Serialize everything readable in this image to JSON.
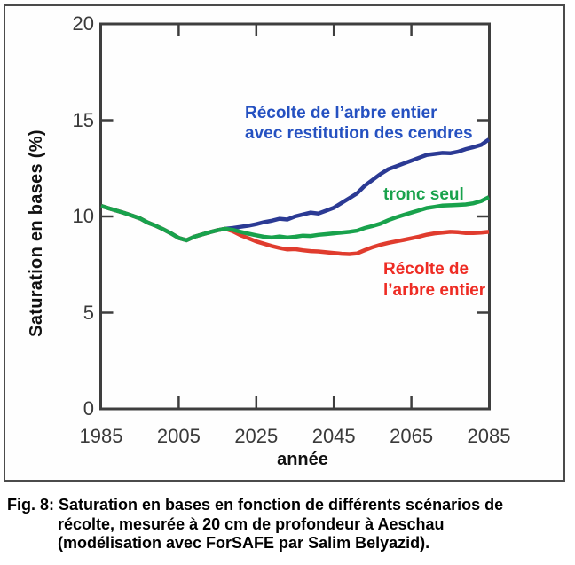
{
  "figure": {
    "caption": {
      "lines": [
        "Fig. 8: Saturation en bases en fonction de différents scénarios de",
        "récolte, mesurée à 20 cm de profondeur à Aeschau",
        "(modélisation avec ForSAFE par Salim Belyazid)."
      ]
    }
  },
  "chart_data": {
    "type": "line",
    "title": "",
    "xlabel": "année",
    "ylabel": "Saturation en bases (%)",
    "xlim": [
      1985,
      2085
    ],
    "ylim": [
      0,
      20
    ],
    "grid": false,
    "legend_position": "inline-annotations",
    "axis_color": "#3e3e3e",
    "x_tick_labels": [
      "1985",
      "2005",
      "2025",
      "2045",
      "2065",
      "2085"
    ],
    "x_tick_values": [
      1985,
      2005,
      2025,
      2045,
      2065,
      2085
    ],
    "x_tick_marks": [
      2005,
      2025,
      2045,
      2065
    ],
    "y_tick_labels": [
      "20",
      "15",
      "10",
      "5",
      "0"
    ],
    "y_tick_values": [
      20,
      15,
      10,
      5,
      0
    ],
    "y_tick_marks": [
      5,
      10,
      15
    ],
    "x": [
      1985,
      1987,
      1989,
      1991,
      1993,
      1995,
      1997,
      1999,
      2001,
      2003,
      2005,
      2007,
      2009,
      2011,
      2013,
      2015,
      2017,
      2019,
      2021,
      2023,
      2025,
      2027,
      2029,
      2031,
      2033,
      2035,
      2037,
      2039,
      2041,
      2043,
      2045,
      2047,
      2049,
      2051,
      2053,
      2055,
      2057,
      2059,
      2061,
      2063,
      2065,
      2067,
      2069,
      2071,
      2073,
      2075,
      2077,
      2079,
      2081,
      2083,
      2085
    ],
    "series": [
      {
        "name": "Récolte de l’arbre entier avec restitution des cendres",
        "annotation_lines": [
          "Récolte de l’arbre entier",
          "avec restitution des cendres"
        ],
        "line_color": "#2b3a94",
        "label_color": "#2551c1",
        "values": [
          10.55,
          10.42,
          10.3,
          10.18,
          10.04,
          9.9,
          9.68,
          9.52,
          9.33,
          9.12,
          8.88,
          8.76,
          8.94,
          9.06,
          9.18,
          9.28,
          9.36,
          9.4,
          9.46,
          9.52,
          9.6,
          9.7,
          9.78,
          9.88,
          9.84,
          10.0,
          10.1,
          10.2,
          10.15,
          10.3,
          10.45,
          10.7,
          10.95,
          11.2,
          11.6,
          11.9,
          12.2,
          12.45,
          12.6,
          12.75,
          12.9,
          13.05,
          13.2,
          13.25,
          13.3,
          13.28,
          13.36,
          13.5,
          13.6,
          13.72,
          14.0
        ]
      },
      {
        "name": "tronc seul",
        "annotation_lines": [
          "tronc seul"
        ],
        "line_color": "#18a24c",
        "label_color": "#18a24c",
        "values": [
          10.55,
          10.42,
          10.3,
          10.18,
          10.04,
          9.9,
          9.68,
          9.52,
          9.33,
          9.12,
          8.88,
          8.76,
          8.94,
          9.06,
          9.18,
          9.28,
          9.36,
          9.3,
          9.2,
          9.1,
          9.02,
          8.94,
          8.9,
          8.96,
          8.9,
          8.94,
          9.0,
          8.98,
          9.04,
          9.08,
          9.12,
          9.16,
          9.2,
          9.26,
          9.4,
          9.5,
          9.62,
          9.8,
          9.95,
          10.08,
          10.2,
          10.32,
          10.44,
          10.5,
          10.56,
          10.58,
          10.6,
          10.62,
          10.68,
          10.8,
          11.0
        ]
      },
      {
        "name": "Récolte de l’arbre entier",
        "annotation_lines": [
          "Récolte de",
          "l’arbre entier"
        ],
        "line_color": "#e03c2e",
        "label_color": "#ee2c24",
        "values": [
          10.55,
          10.42,
          10.3,
          10.18,
          10.04,
          9.9,
          9.68,
          9.52,
          9.33,
          9.12,
          8.88,
          8.76,
          8.94,
          9.06,
          9.18,
          9.28,
          9.36,
          9.22,
          9.02,
          8.86,
          8.7,
          8.58,
          8.46,
          8.36,
          8.28,
          8.3,
          8.24,
          8.2,
          8.18,
          8.14,
          8.1,
          8.06,
          8.04,
          8.08,
          8.25,
          8.4,
          8.52,
          8.62,
          8.7,
          8.78,
          8.86,
          8.95,
          9.05,
          9.12,
          9.16,
          9.2,
          9.18,
          9.14,
          9.14,
          9.16,
          9.2
        ]
      }
    ]
  }
}
